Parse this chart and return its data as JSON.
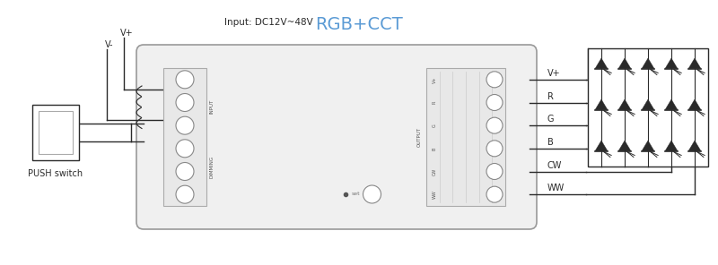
{
  "title": "RGB+CCT",
  "title_color": "#5B9BD5",
  "title_fontsize": 14,
  "bg_color": "#ffffff",
  "line_color": "#2a2a2a",
  "input_label": "Input: DC12V~48V",
  "vplus_label": "V+",
  "vminus_label": "V-",
  "push_label": "PUSH switch",
  "output_labels": [
    "V+",
    "R",
    "G",
    "B",
    "CW",
    "WW"
  ],
  "figsize": [
    8.0,
    2.96
  ],
  "dpi": 100
}
